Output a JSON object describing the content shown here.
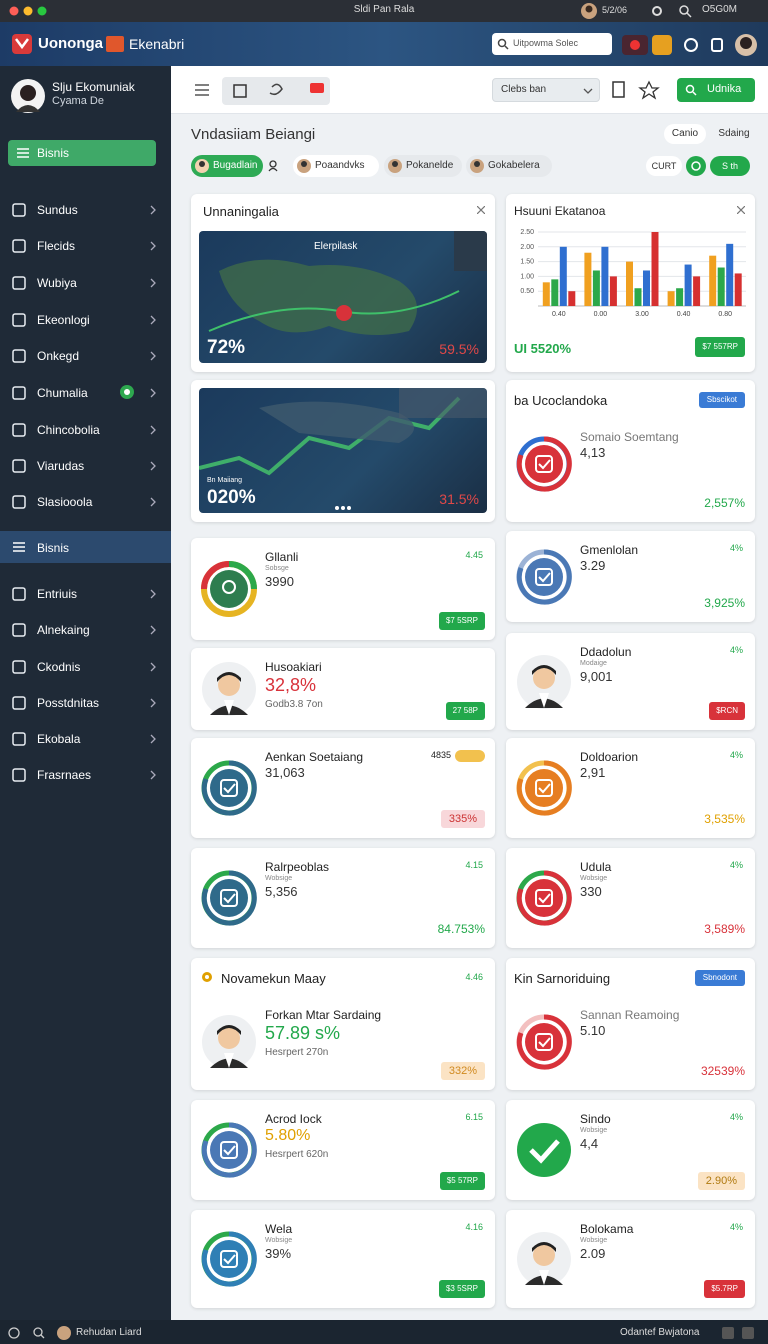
{
  "window": {
    "title": "Sldi Pan Rala",
    "date": "5/2/06",
    "status": "O5G0M"
  },
  "header": {
    "brand": "Uonongа",
    "brand_tag": "Ekenabri",
    "search": "Uitpowma Solec"
  },
  "sidebar": {
    "user_name": "Slju Ekomuniak",
    "user_role": "Cyama De",
    "primary": "Bisnis",
    "items": [
      "Sundus",
      "Flecids",
      "Wubiya",
      "Ekeonlogi",
      "Onkegd",
      "Chumalia",
      "Chincobolia",
      "Viarudas",
      "Slasiooola"
    ],
    "section": "Bisnis",
    "items2": [
      "Entriuis",
      "Alnekaing",
      "Ckodnis",
      "Posstdnitas",
      "Ekobala",
      "Frasrnaes"
    ]
  },
  "toolbar": {
    "dropdown": "Clebs ban",
    "button": "Udnika"
  },
  "page": {
    "title": "Vndasiiam Beiangi",
    "actions": [
      "Canio",
      "Sdaing"
    ],
    "tabs": [
      "Bugadlain",
      "Poaandvks",
      "Pokanelde",
      "Gokabelera"
    ],
    "chips": [
      "CURT",
      "S th"
    ]
  },
  "cards": [
    {
      "kind": "image",
      "title": "Unnaningalia",
      "image_title": "Elerpilask",
      "left_value": "72%",
      "right_value": "59.5%"
    },
    {
      "kind": "chart",
      "title": "Hsuuni Ekatanoa",
      "total": "UI 5520%",
      "button": "$7 557RP",
      "chart": {
        "type": "bar",
        "ylim": [
          0,
          2.5
        ],
        "yticks": [
          {
            "value": 0.5,
            "label": "0.50"
          },
          {
            "value": 1,
            "label": "1.00"
          },
          {
            "value": 1.5,
            "label": "1.50"
          },
          {
            "value": 2,
            "label": "2.00"
          },
          {
            "value": 2.5,
            "label": "2.50"
          }
        ],
        "categories": [
          "0.40",
          "0.00",
          "3.00",
          "0.40",
          "0.80"
        ],
        "series": [
          {
            "color": "#f0a020",
            "values": [
              0.8,
              1.8,
              1.5,
              0.5,
              1.7
            ]
          },
          {
            "color": "#2ca84a",
            "values": [
              0.9,
              1.2,
              0.6,
              0.6,
              1.3
            ]
          },
          {
            "color": "#2f6fd0",
            "values": [
              2.0,
              2.0,
              1.2,
              1.4,
              2.1
            ]
          },
          {
            "color": "#d63030",
            "values": [
              0.5,
              1.0,
              2.5,
              1.0,
              1.1
            ]
          }
        ]
      }
    },
    {
      "kind": "image",
      "image_title": "Bn Maiiang",
      "left_value": "020%",
      "right_value": "31.5%"
    },
    {
      "kind": "stat",
      "heading": "ba Ucoclandoka",
      "tag": "Sbscikot",
      "title": "Somaio Soemtang",
      "value": "4,13",
      "change": "2,557%"
    },
    {
      "kind": "stat",
      "title": "Gllanli",
      "subtitle": "Sobsge",
      "value": "3990",
      "corner": "4.45",
      "button": "$7 5SRP"
    },
    {
      "kind": "stat",
      "title": "Gmenlolan",
      "value": "3.29",
      "corner": "4%",
      "change": "3,925%"
    },
    {
      "kind": "stat",
      "title": "Husoakiari",
      "value": "32,8%",
      "note": "Godb3.8 7on",
      "button": "27 58P"
    },
    {
      "kind": "stat",
      "title": "Ddadolun",
      "subtitle": "Modaige",
      "value": "9,001",
      "corner": "4%",
      "button": "$RCN"
    },
    {
      "kind": "stat",
      "title": "Aenkan Soetaiang",
      "value": "31,063",
      "corner": "4835",
      "pill": "335%"
    },
    {
      "kind": "stat",
      "title": "Doldoarion",
      "value": "2,91",
      "corner": "4%",
      "change": "3,535%"
    },
    {
      "kind": "stat",
      "title": "Ralrpeoblas",
      "subtitle": "Wobsige",
      "value": "5,356",
      "corner": "4.15",
      "change": "84.753%"
    },
    {
      "kind": "stat",
      "title": "Udula",
      "subtitle": "Wobsige",
      "value": "330",
      "corner": "4%",
      "change": "3,589%"
    },
    {
      "kind": "stat",
      "heading": "Novamekun Maay",
      "corner": "4.46",
      "title": "Forkan Mtar Sardaing",
      "value": "57.89 s%",
      "note": "Hesrpert 270n",
      "pill": "332%"
    },
    {
      "kind": "stat",
      "heading": "Kin Sarnoriduing",
      "tag": "Sbnodont",
      "title": "Sannan Reamoing",
      "value": "5.10",
      "change": "32539%"
    },
    {
      "kind": "stat",
      "title": "Acrod Iock",
      "value": "5.80%",
      "note": "Hesrpert 620n",
      "corner": "6.15",
      "button": "$5 57RP"
    },
    {
      "kind": "stat",
      "title": "Sindo",
      "subtitle": "Wobsige",
      "value": "4,4",
      "corner": "4%",
      "pill": "2.90%"
    },
    {
      "kind": "stat",
      "title": "Wela",
      "subtitle": "Wobsige",
      "value": "39%",
      "corner": "4.16",
      "button": "$3 5SRP"
    },
    {
      "kind": "stat",
      "title": "Bolokama",
      "subtitle": "Wobsige",
      "value": "2.09",
      "corner": "4%",
      "button": "$5.7RP"
    }
  ],
  "footer": {
    "left": "Rehudan Liard",
    "right": "Odantef Bwjatona"
  }
}
